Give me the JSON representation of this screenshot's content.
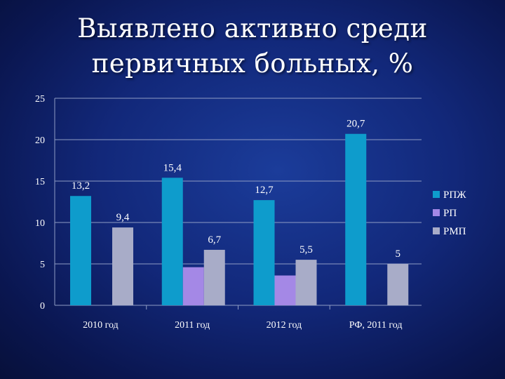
{
  "slide": {
    "title_line1": "Выявлено активно среди",
    "title_line2": "первичных больных, %"
  },
  "chart_data": {
    "type": "bar",
    "categories": [
      "2010 год",
      "2011 год",
      "2012 год",
      "РФ, 2011 год"
    ],
    "series": [
      {
        "name": "РПЖ",
        "color": "#0e9ccc",
        "values": [
          13.2,
          15.4,
          12.7,
          20.7
        ],
        "labels": [
          "13,2",
          "15,4",
          "12,7",
          "20,7"
        ]
      },
      {
        "name": "РП",
        "color": "#a488e6",
        "values": [
          null,
          4.6,
          3.6,
          null
        ],
        "labels": [
          "",
          "",
          "",
          ""
        ]
      },
      {
        "name": "РМП",
        "color": "#a8acc8",
        "values": [
          9.4,
          6.7,
          5.5,
          5
        ],
        "labels": [
          "9,4",
          "6,7",
          "5,5",
          "5"
        ]
      }
    ],
    "ylim": [
      0,
      25
    ],
    "yticks": [
      0,
      5,
      10,
      15,
      20,
      25
    ],
    "grid": true,
    "legend_position": "right"
  }
}
